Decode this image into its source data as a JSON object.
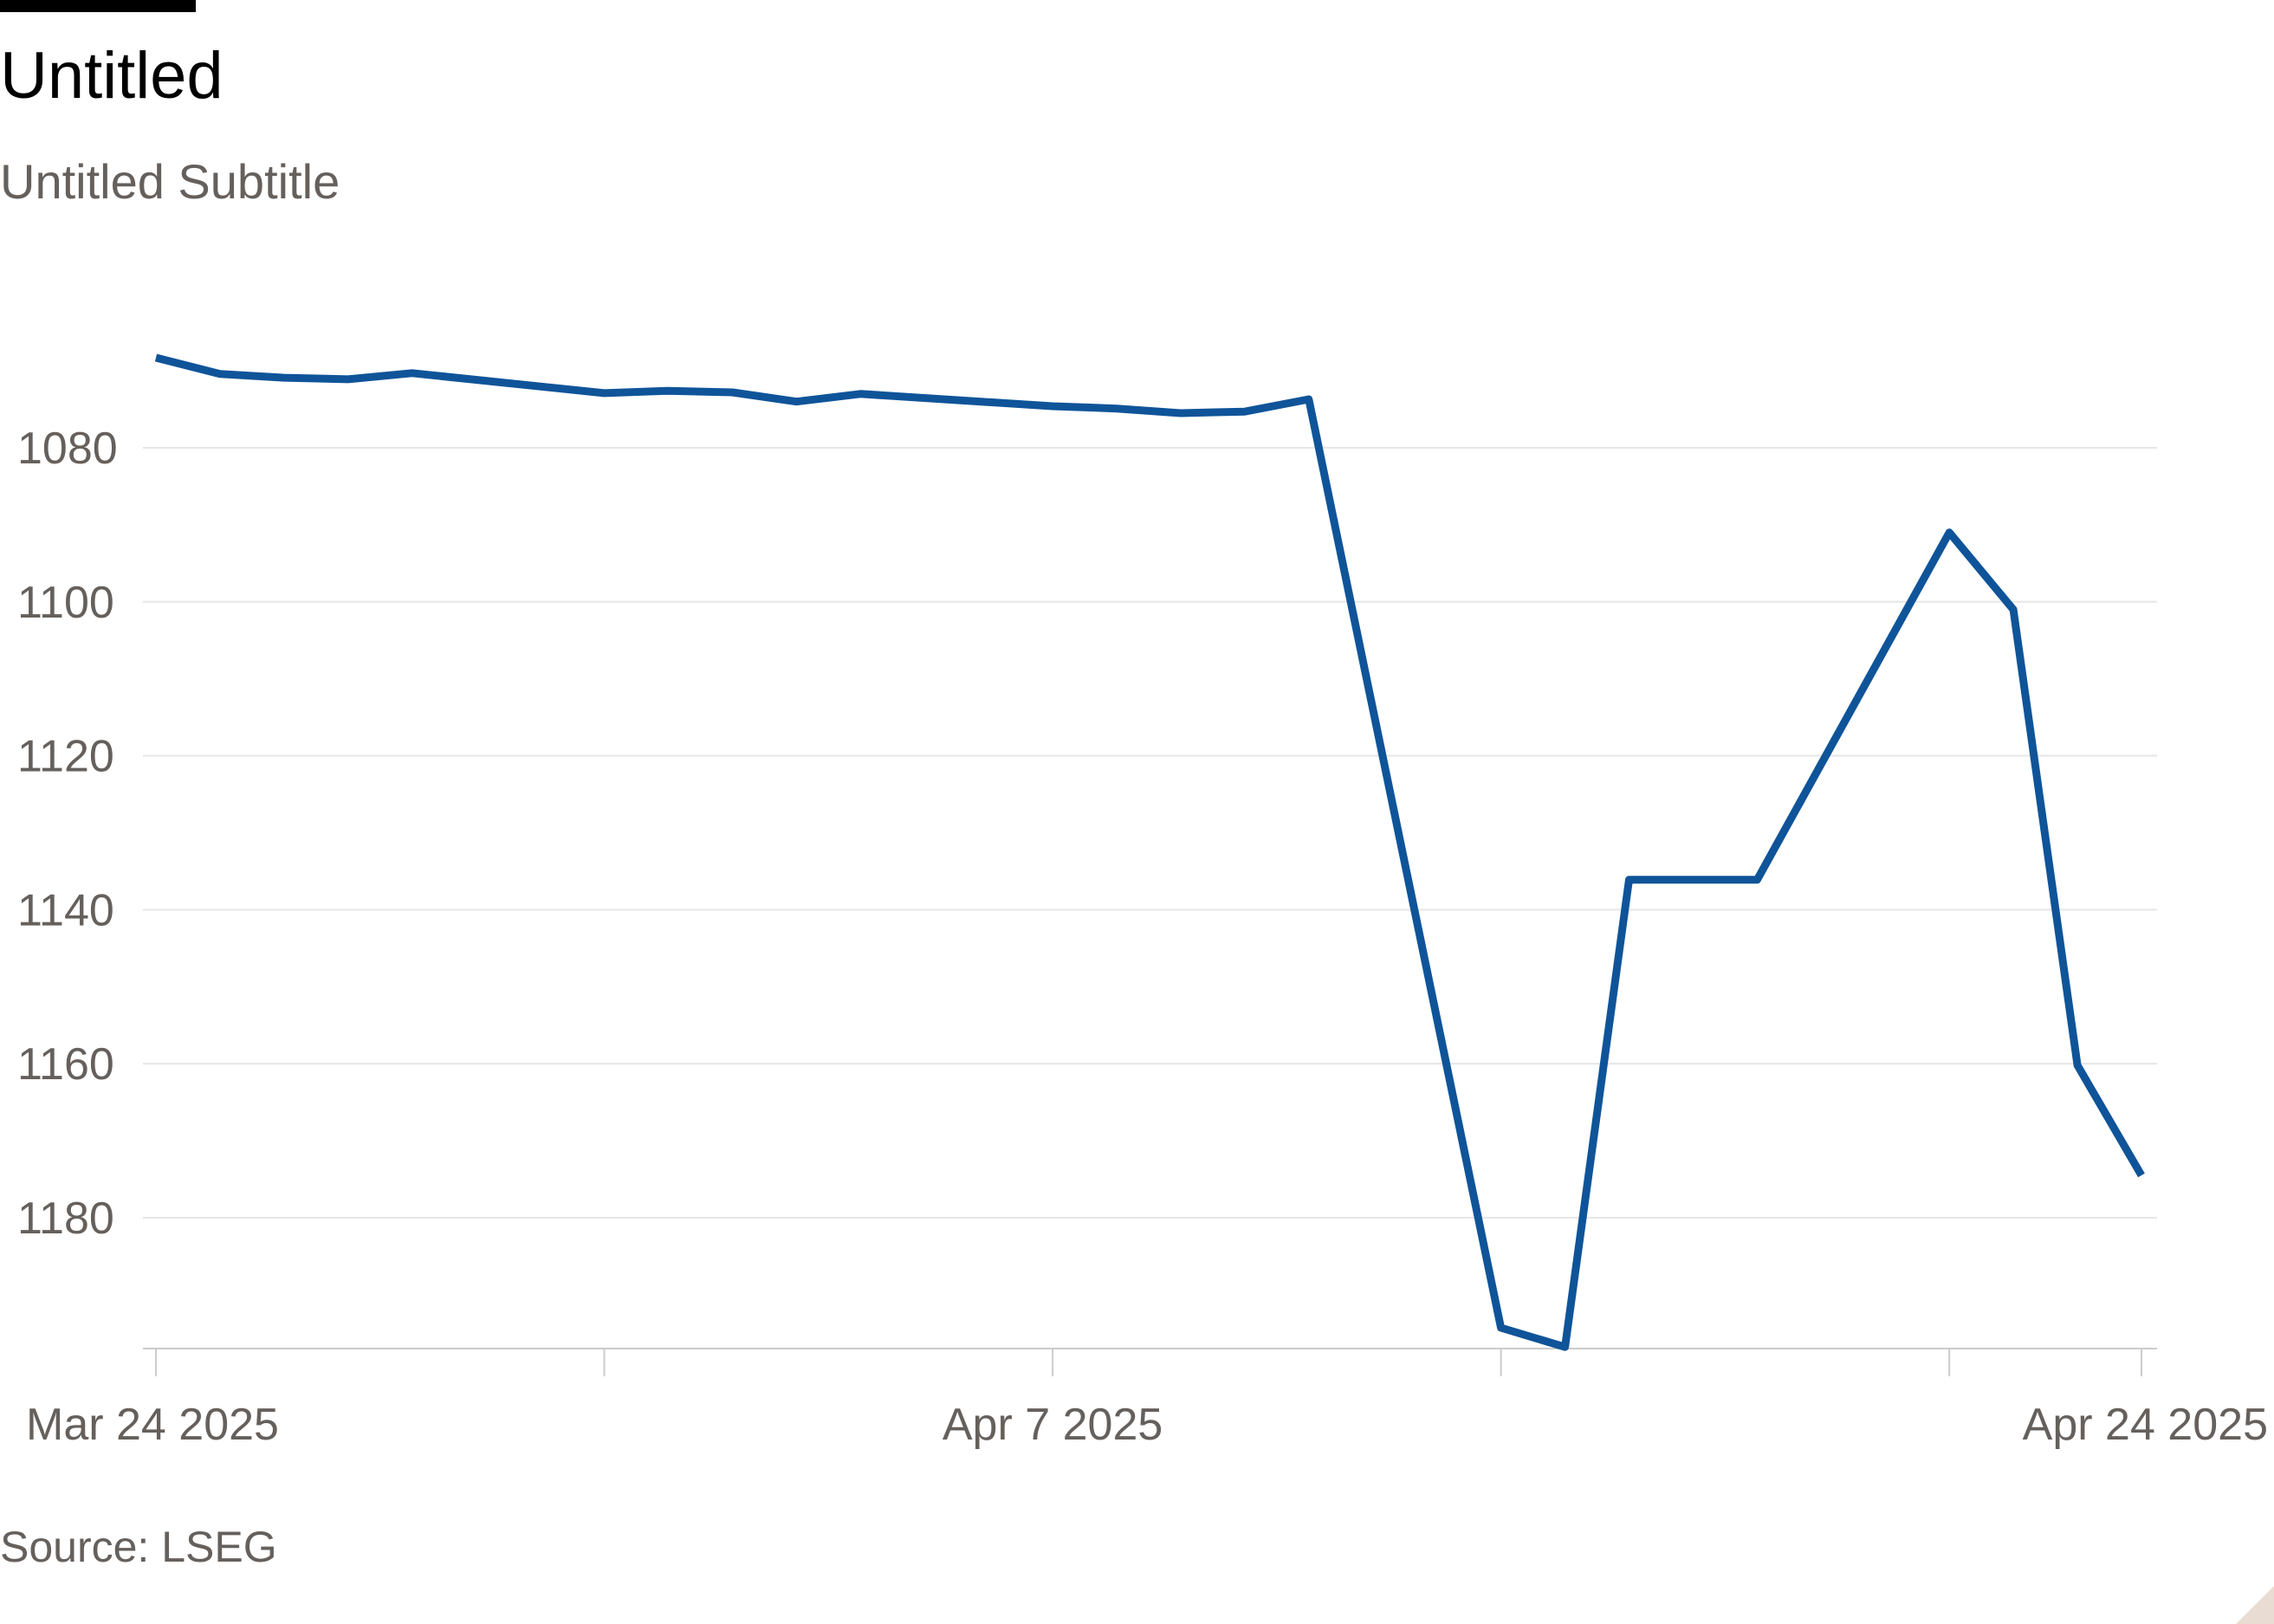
{
  "header": {
    "title": "Untitled",
    "subtitle": "Untitled Subtitle"
  },
  "footer": {
    "source": "Source: LSEG"
  },
  "colors": {
    "line": "#0f5499",
    "grid": "#e6e6e6",
    "axis": "#cccccc",
    "tick_text": "#66605c"
  },
  "chart_data": {
    "type": "line",
    "title": "Untitled",
    "subtitle": "Untitled Subtitle",
    "xlabel": "",
    "ylabel": "",
    "y_axis_inverted": true,
    "ylim": [
      1062,
      1197
    ],
    "y_ticks": [
      1080,
      1100,
      1120,
      1140,
      1160,
      1180
    ],
    "xlim": [
      "2025-03-24",
      "2025-04-24"
    ],
    "x_ticks": [
      {
        "date": "2025-03-24",
        "label": "Mar 24 2025"
      },
      {
        "date": "2025-03-31",
        "label": ""
      },
      {
        "date": "2025-04-07",
        "label": "Apr 7 2025"
      },
      {
        "date": "2025-04-14",
        "label": ""
      },
      {
        "date": "2025-04-21",
        "label": ""
      },
      {
        "date": "2025-04-24",
        "label": "Apr 24 2025"
      }
    ],
    "grid": true,
    "legend": "none",
    "series": [
      {
        "x": [
          "2025-03-24",
          "2025-03-25",
          "2025-03-26",
          "2025-03-27",
          "2025-03-28",
          "2025-03-31",
          "2025-04-01",
          "2025-04-02",
          "2025-04-03",
          "2025-04-04",
          "2025-04-07",
          "2025-04-08",
          "2025-04-09",
          "2025-04-10",
          "2025-04-11",
          "2025-04-14",
          "2025-04-15",
          "2025-04-16",
          "2025-04-17",
          "2025-04-18",
          "2025-04-21",
          "2025-04-22",
          "2025-04-23",
          "2025-04-24"
        ],
        "values": [
          1068.3,
          1070.4,
          1070.9,
          1071.1,
          1070.3,
          1072.9,
          1072.6,
          1072.8,
          1074.0,
          1073.0,
          1074.6,
          1074.9,
          1075.5,
          1075.3,
          1073.7,
          1194.3,
          1196.8,
          1136.1,
          1136.1,
          1136.1,
          1091.0,
          1101.0,
          1160.2,
          1174.5
        ]
      }
    ]
  }
}
